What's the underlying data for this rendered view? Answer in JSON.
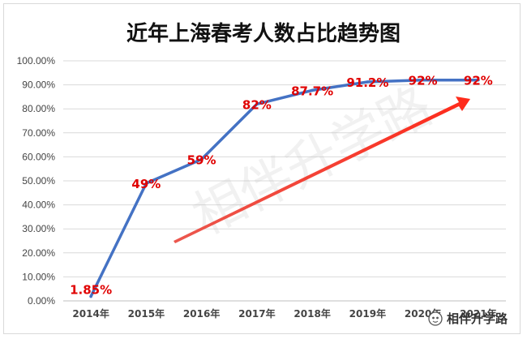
{
  "chart_data": {
    "type": "line",
    "title": "近年上海春考人数占比趋势图",
    "categories": [
      "2014年",
      "2015年",
      "2016年",
      "2017年",
      "2018年",
      "2019年",
      "2020年",
      "2021年"
    ],
    "series": [
      {
        "values": [
          1.85,
          49,
          59,
          82,
          87.7,
          91.2,
          92,
          92
        ],
        "color": "#4472c4"
      }
    ],
    "data_labels": [
      "1.85%",
      "49%",
      "59%",
      "82%",
      "87.7%",
      "91.2%",
      "92%",
      "92%"
    ],
    "y_ticks": [
      "0.00%",
      "10.00%",
      "20.00%",
      "30.00%",
      "40.00%",
      "50.00%",
      "60.00%",
      "70.00%",
      "80.00%",
      "90.00%",
      "100.00%"
    ],
    "ylim": [
      0,
      100
    ],
    "grid": true,
    "xlabel": "",
    "ylabel": "",
    "data_label_color": "#e00000",
    "arrow_color": "#e83a2f"
  },
  "watermark": "相伴升学路",
  "logo": {
    "text": "相伴升学路",
    "icon": "wechat-icon"
  }
}
